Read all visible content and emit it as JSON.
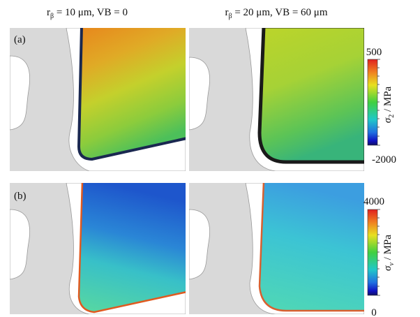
{
  "columns": [
    {
      "symbol": "r",
      "subscript": "β",
      "text": " = 10 μm, VB = 0"
    },
    {
      "symbol": "r",
      "subscript": "β",
      "text": " = 20 μm, VB = 60 μm"
    }
  ],
  "panels": [
    {
      "label": "(a)",
      "colorbar": {
        "max": 500,
        "min": -2000,
        "symbol": "σ",
        "subscript": "2",
        "unit": " / MPa"
      }
    },
    {
      "label": "(b)",
      "colorbar": {
        "max": 4000,
        "min": 0,
        "symbol": "σ",
        "subscript": "v",
        "unit": " / MPa"
      }
    }
  ]
}
